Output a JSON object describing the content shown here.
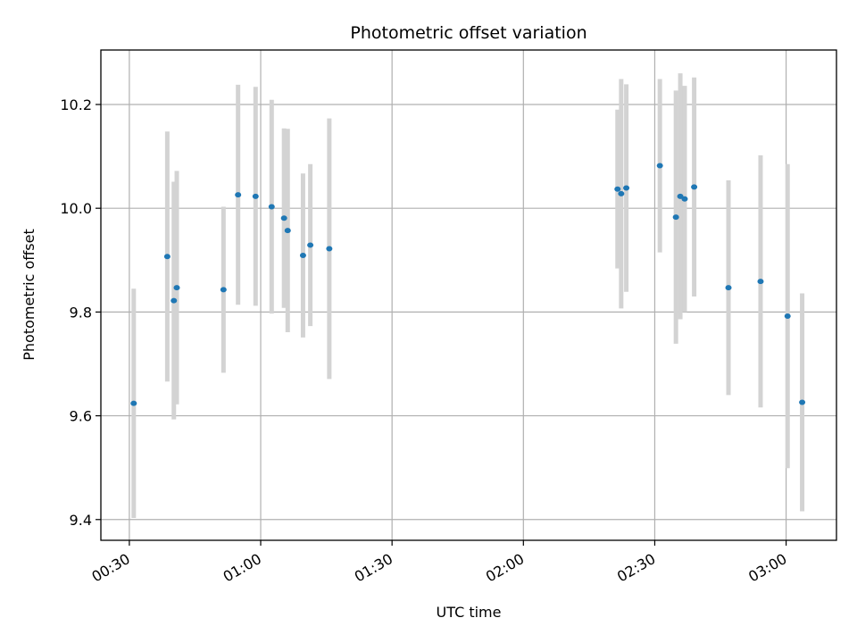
{
  "chart_data": {
    "type": "scatter",
    "title": "Photometric offset variation",
    "xlabel": "UTC time",
    "ylabel": "Photometric offset",
    "x_ticks": [
      "00:30",
      "01:00",
      "01:30",
      "02:00",
      "02:30",
      "03:00"
    ],
    "y_ticks": [
      "9.4",
      "9.6",
      "9.8",
      "10.0",
      "10.2"
    ],
    "xlim": [
      "00:23:30",
      "03:11:30"
    ],
    "ylim": [
      9.36,
      10.305
    ],
    "grid": true,
    "legend": "none",
    "colors": {
      "point": "#1f77b4",
      "errorbar": "#d3d3d3",
      "grid": "#b0b0b0"
    },
    "points": [
      {
        "t": "00:31:00",
        "y": 9.624,
        "err": 0.221
      },
      {
        "t": "00:38:40",
        "y": 9.907,
        "err": 0.241
      },
      {
        "t": "00:40:10",
        "y": 9.822,
        "err": 0.229
      },
      {
        "t": "00:40:50",
        "y": 9.847,
        "err": 0.225
      },
      {
        "t": "00:51:30",
        "y": 9.843,
        "err": 0.16
      },
      {
        "t": "00:54:50",
        "y": 10.026,
        "err": 0.212
      },
      {
        "t": "00:58:50",
        "y": 10.023,
        "err": 0.211
      },
      {
        "t": "01:02:30",
        "y": 10.003,
        "err": 0.206
      },
      {
        "t": "01:05:20",
        "y": 9.981,
        "err": 0.173
      },
      {
        "t": "01:06:10",
        "y": 9.957,
        "err": 0.196
      },
      {
        "t": "01:09:40",
        "y": 9.909,
        "err": 0.158
      },
      {
        "t": "01:11:20",
        "y": 9.929,
        "err": 0.156
      },
      {
        "t": "01:15:40",
        "y": 9.922,
        "err": 0.251
      },
      {
        "t": "02:21:30",
        "y": 10.037,
        "err": 0.153
      },
      {
        "t": "02:22:20",
        "y": 10.028,
        "err": 0.221
      },
      {
        "t": "02:23:30",
        "y": 10.039,
        "err": 0.2
      },
      {
        "t": "02:31:10",
        "y": 10.082,
        "err": 0.167
      },
      {
        "t": "02:34:50",
        "y": 9.983,
        "err": 0.244
      },
      {
        "t": "02:35:50",
        "y": 10.023,
        "err": 0.237
      },
      {
        "t": "02:36:50",
        "y": 10.018,
        "err": 0.218
      },
      {
        "t": "02:39:00",
        "y": 10.041,
        "err": 0.211
      },
      {
        "t": "02:46:50",
        "y": 9.847,
        "err": 0.207
      },
      {
        "t": "02:54:10",
        "y": 9.859,
        "err": 0.243
      },
      {
        "t": "03:00:20",
        "y": 9.792,
        "err": 0.293
      },
      {
        "t": "03:03:40",
        "y": 9.626,
        "err": 0.21
      }
    ]
  }
}
